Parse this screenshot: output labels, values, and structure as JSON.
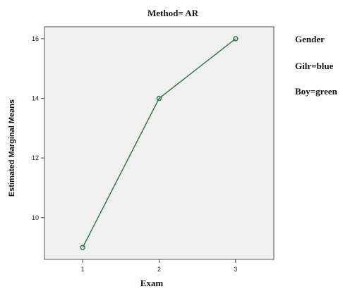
{
  "chart_data": {
    "type": "line",
    "title": "Method= AR",
    "xlabel": "Exam",
    "ylabel": "Estimated Marginal Means",
    "x": [
      1,
      2,
      3
    ],
    "xlim": [
      0.5,
      3.5
    ],
    "ylim": [
      8.6,
      16.4
    ],
    "xticks": [
      "1",
      "2",
      "3"
    ],
    "yticks": [
      10,
      12,
      14,
      16
    ],
    "grid": false,
    "series": [
      {
        "name": "",
        "values": [
          9,
          14,
          16
        ],
        "color": "#2e7d4a"
      }
    ],
    "legend": {
      "placement": "right",
      "title": "Gender",
      "entries": [
        "Gilr=blue",
        "Boy=green"
      ]
    },
    "plot_background": "#f0f0f0"
  }
}
